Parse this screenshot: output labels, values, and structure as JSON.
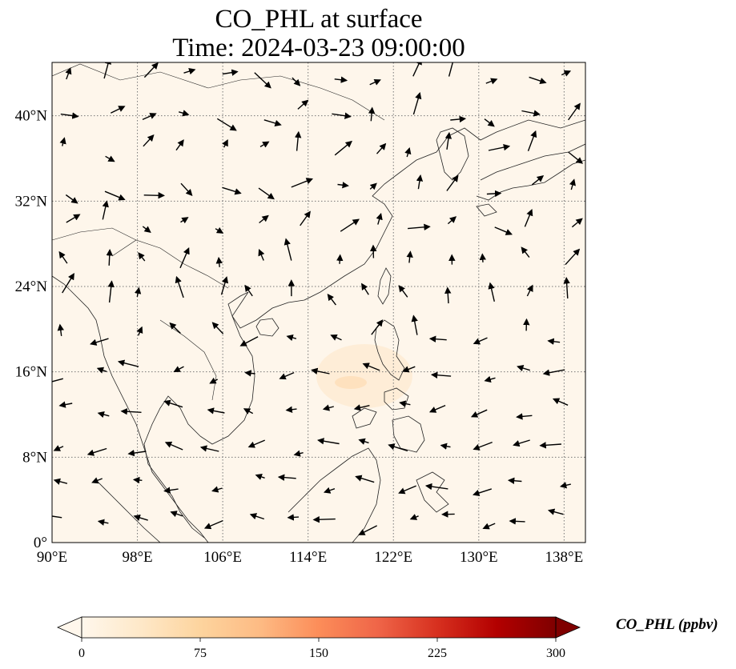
{
  "title": {
    "line1": "CO_PHL at surface",
    "line2": "Time: 2024-03-23 09:00:00"
  },
  "map": {
    "extent": {
      "lon": [
        90,
        140
      ],
      "lat": [
        0,
        45
      ]
    },
    "projection": "PlateCarree",
    "gridlines": "dotted",
    "background_value": "≈0 ppbv",
    "x_ticks": [
      "90°E",
      "98°E",
      "106°E",
      "114°E",
      "122°E",
      "130°E",
      "138°E"
    ],
    "x_tick_values": [
      90,
      98,
      106,
      114,
      122,
      130,
      138
    ],
    "y_ticks": [
      "0°",
      "8°N",
      "16°N",
      "24°N",
      "32°N",
      "40°N"
    ],
    "y_tick_values": [
      0,
      8,
      16,
      24,
      32,
      40
    ],
    "wind_vectors": true
  },
  "colorbar": {
    "label": "CO_PHL (ppbv)",
    "ticks": [
      "0",
      "75",
      "150",
      "225",
      "300"
    ],
    "tick_values": [
      0,
      75,
      150,
      225,
      300
    ],
    "range": [
      0,
      300
    ],
    "colormap": "OrRd",
    "extend": "both",
    "colors": [
      "#fff7ec",
      "#fee8c8",
      "#fdd49e",
      "#fdbb84",
      "#fc8d59",
      "#ef6548",
      "#d7301f",
      "#b30000",
      "#7f0000"
    ]
  }
}
